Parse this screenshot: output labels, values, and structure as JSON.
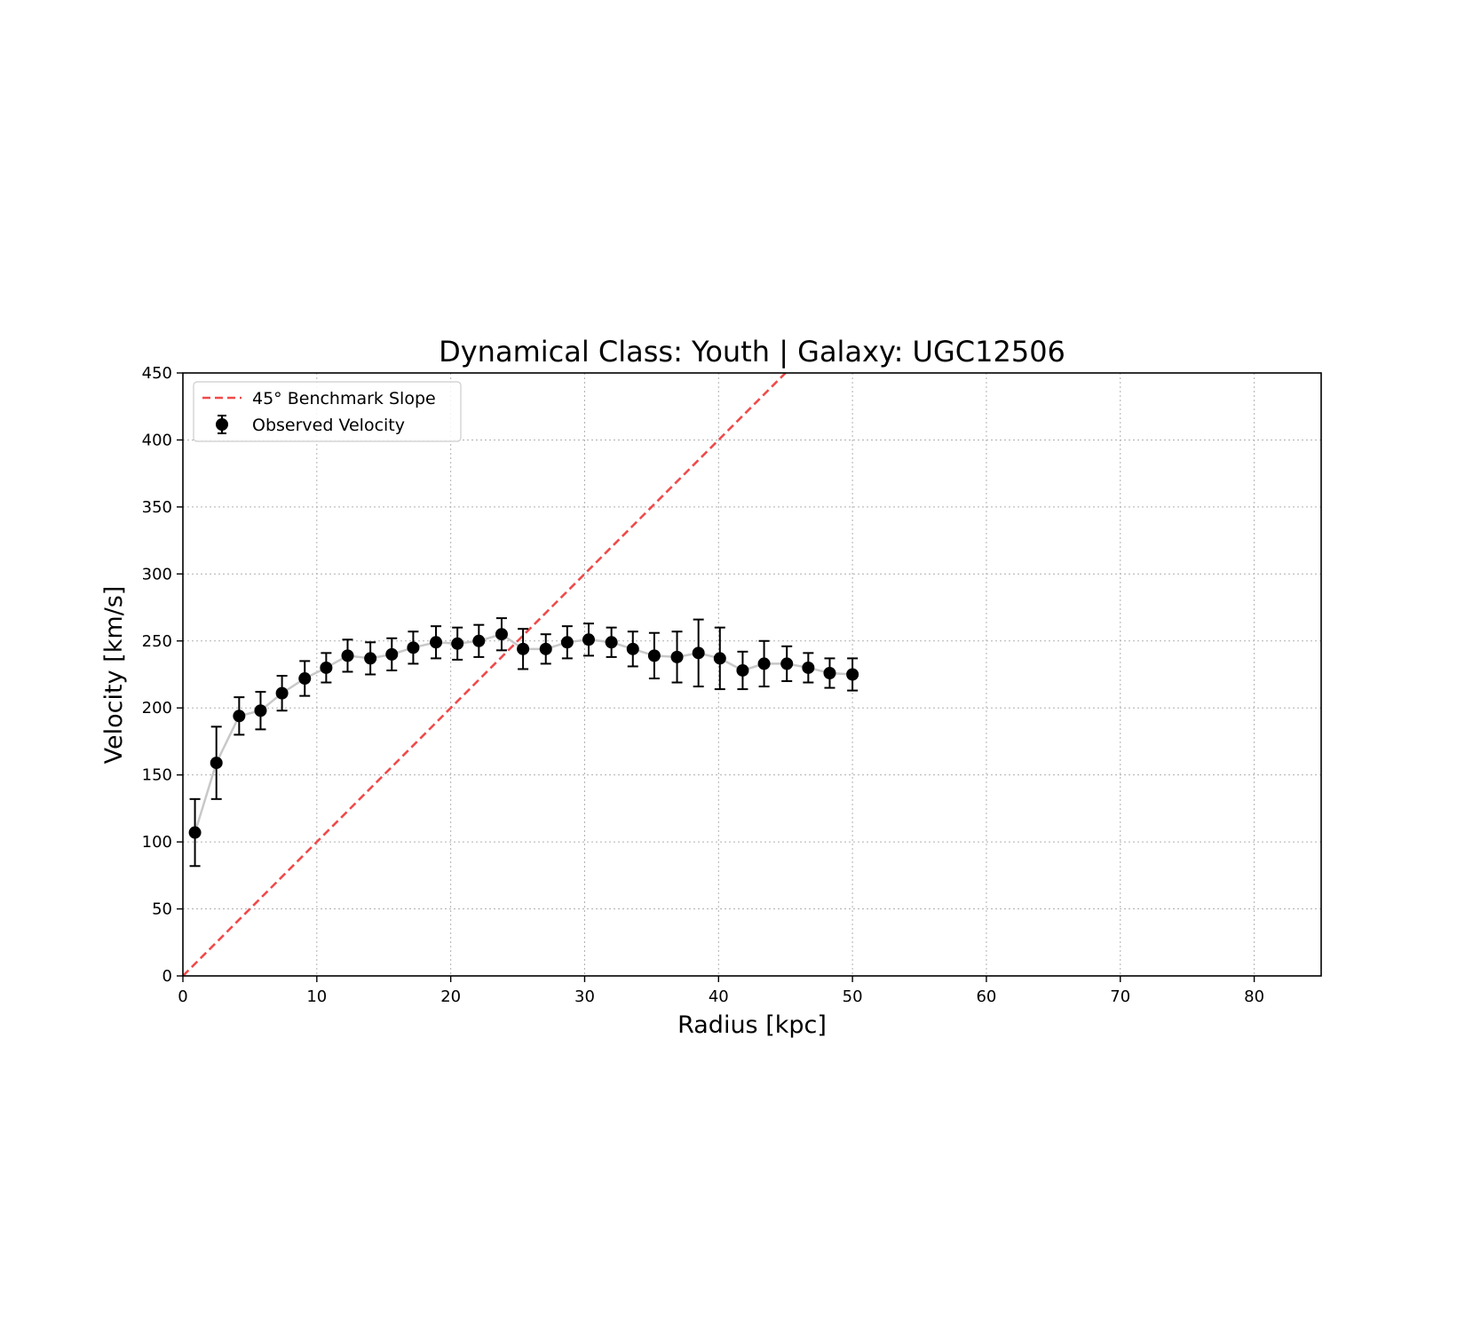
{
  "chart_data": {
    "type": "scatter",
    "title": "Dynamical Class: Youth | Galaxy: UGC12506",
    "xlabel": "Radius [kpc]",
    "ylabel": "Velocity [km/s]",
    "xlim": [
      0,
      85
    ],
    "ylim": [
      0,
      450
    ],
    "xticks": [
      0,
      10,
      20,
      30,
      40,
      50,
      60,
      70,
      80
    ],
    "yticks": [
      0,
      50,
      100,
      150,
      200,
      250,
      300,
      350,
      400,
      450
    ],
    "grid": true,
    "legend_position": "top-left",
    "colors": {
      "benchmark": "#f04a4a",
      "points": "#000000",
      "connector": "#c8c8c8",
      "grid": "#b0b0b0"
    },
    "series": [
      {
        "name": "45° Benchmark Slope",
        "kind": "line",
        "style": "dashed",
        "x": [
          0,
          45
        ],
        "y": [
          0,
          450
        ]
      },
      {
        "name": "Observed Velocity",
        "kind": "errorbar",
        "x": [
          0.9,
          2.5,
          4.2,
          5.8,
          7.4,
          9.1,
          10.7,
          12.3,
          14.0,
          15.6,
          17.2,
          18.9,
          20.5,
          22.1,
          23.8,
          25.4,
          27.1,
          28.7,
          30.3,
          32.0,
          33.6,
          35.2,
          36.9,
          38.5,
          40.1,
          41.8,
          43.4,
          45.1,
          46.7,
          48.3,
          50.0
        ],
        "y": [
          107,
          159,
          194,
          198,
          211,
          222,
          230,
          239,
          237,
          240,
          245,
          249,
          248,
          250,
          255,
          244,
          244,
          249,
          251,
          249,
          244,
          239,
          238,
          241,
          237,
          228,
          233,
          233,
          230,
          226,
          225
        ],
        "yerr": [
          25,
          27,
          14,
          14,
          13,
          13,
          11,
          12,
          12,
          12,
          12,
          12,
          12,
          12,
          12,
          15,
          11,
          12,
          12,
          11,
          13,
          17,
          19,
          25,
          23,
          14,
          17,
          13,
          11,
          11,
          12
        ]
      }
    ]
  }
}
